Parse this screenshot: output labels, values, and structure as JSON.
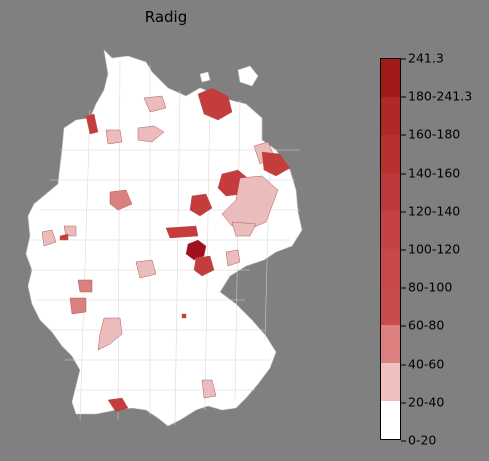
{
  "title": "Radig",
  "legend": {
    "ticks": [
      "0-20",
      "20-40",
      "40-60",
      "60-80",
      "80-100",
      "100-120",
      "120-140",
      "140-160",
      "160-180",
      "180-241.3",
      "241.3"
    ],
    "segments": [
      "#ffffff",
      "#f0c0c0",
      "#dc8080",
      "#c84c4c",
      "#c84848",
      "#c44242",
      "#be3a3a",
      "#b83030",
      "#b02828",
      "#a01a1a"
    ]
  },
  "colors": {
    "background": "#808080",
    "land": "#ffffff",
    "border": "#c8c8c8",
    "light": "#ebbcbc",
    "medium": "#d98080",
    "strong": "#c43c3c",
    "dark": "#a0101c"
  }
}
